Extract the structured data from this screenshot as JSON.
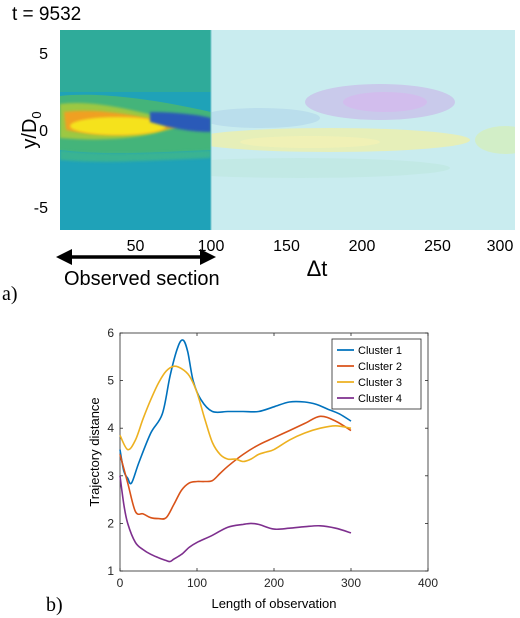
{
  "panel_a": {
    "time_label": "t = 9532",
    "xlabel": "Δt",
    "ylabel_main": "y/D",
    "ylabel_sub": "0",
    "x_ticks": [
      100,
      150,
      200,
      250,
      300
    ],
    "x_ticks_observed": [
      50
    ],
    "y_ticks": [
      5,
      0,
      -5
    ],
    "observed_section_label": "Observed section",
    "panel_label": "a)"
  },
  "panel_b": {
    "panel_label": "b)"
  },
  "chart_data": [
    {
      "type": "heatmap",
      "title": "t = 9532",
      "xlabel": "Δt",
      "ylabel": "y/D0",
      "xlim": [
        0,
        300
      ],
      "ylim": [
        -6.5,
        6.5
      ],
      "observed_section": [
        0,
        100
      ],
      "colors": {
        "background_observed": "#1fa2b8",
        "background_predicted": "#c9ecef",
        "band_outer": "#44b47a",
        "band_mid": "#9cc842",
        "band_inner": "#f0a020",
        "core": "#f5e21c",
        "low_lobe": "#2a5ab8"
      }
    },
    {
      "type": "line",
      "title": "",
      "xlabel": "Length of observation",
      "ylabel": "Trajectory distance",
      "xlim": [
        0,
        400
      ],
      "ylim": [
        1,
        6
      ],
      "x_ticks": [
        0,
        100,
        200,
        300,
        400
      ],
      "y_ticks": [
        1,
        2,
        3,
        4,
        5,
        6
      ],
      "legend_position": "top-right",
      "series": [
        {
          "name": "Cluster 1",
          "color": "#0072bd",
          "x": [
            0,
            5,
            10,
            15,
            25,
            40,
            55,
            65,
            75,
            82,
            88,
            95,
            105,
            120,
            140,
            160,
            180,
            200,
            220,
            240,
            255,
            270,
            285,
            300
          ],
          "y": [
            3.55,
            3.1,
            2.95,
            2.85,
            3.3,
            3.9,
            4.3,
            5.1,
            5.7,
            5.85,
            5.6,
            5.0,
            4.6,
            4.35,
            4.35,
            4.35,
            4.35,
            4.45,
            4.55,
            4.55,
            4.5,
            4.4,
            4.3,
            4.15
          ]
        },
        {
          "name": "Cluster 2",
          "color": "#d95319",
          "x": [
            0,
            10,
            20,
            30,
            40,
            50,
            60,
            70,
            80,
            90,
            100,
            110,
            120,
            130,
            140,
            160,
            180,
            200,
            220,
            240,
            260,
            280,
            300
          ],
          "y": [
            3.45,
            2.85,
            2.25,
            2.2,
            2.12,
            2.1,
            2.12,
            2.4,
            2.7,
            2.85,
            2.88,
            2.88,
            2.9,
            3.05,
            3.2,
            3.45,
            3.65,
            3.8,
            3.95,
            4.1,
            4.25,
            4.15,
            3.95
          ]
        },
        {
          "name": "Cluster 3",
          "color": "#edb120",
          "x": [
            0,
            10,
            20,
            30,
            40,
            50,
            60,
            70,
            80,
            90,
            100,
            110,
            120,
            130,
            140,
            150,
            160,
            170,
            180,
            190,
            200,
            220,
            240,
            260,
            280,
            300
          ],
          "y": [
            3.85,
            3.55,
            3.75,
            4.2,
            4.6,
            4.95,
            5.2,
            5.3,
            5.25,
            5.1,
            4.75,
            4.2,
            3.7,
            3.45,
            3.35,
            3.35,
            3.3,
            3.35,
            3.45,
            3.5,
            3.55,
            3.75,
            3.9,
            4.0,
            4.05,
            4.0
          ]
        },
        {
          "name": "Cluster 4",
          "color": "#7e2f8e",
          "x": [
            0,
            5,
            10,
            20,
            30,
            40,
            50,
            60,
            65,
            70,
            80,
            90,
            100,
            120,
            140,
            160,
            170,
            180,
            200,
            220,
            240,
            260,
            280,
            300
          ],
          "y": [
            3.0,
            2.4,
            2.0,
            1.6,
            1.45,
            1.35,
            1.28,
            1.22,
            1.2,
            1.25,
            1.35,
            1.5,
            1.6,
            1.75,
            1.92,
            1.98,
            2.0,
            1.98,
            1.88,
            1.9,
            1.93,
            1.95,
            1.9,
            1.8
          ]
        }
      ]
    }
  ]
}
